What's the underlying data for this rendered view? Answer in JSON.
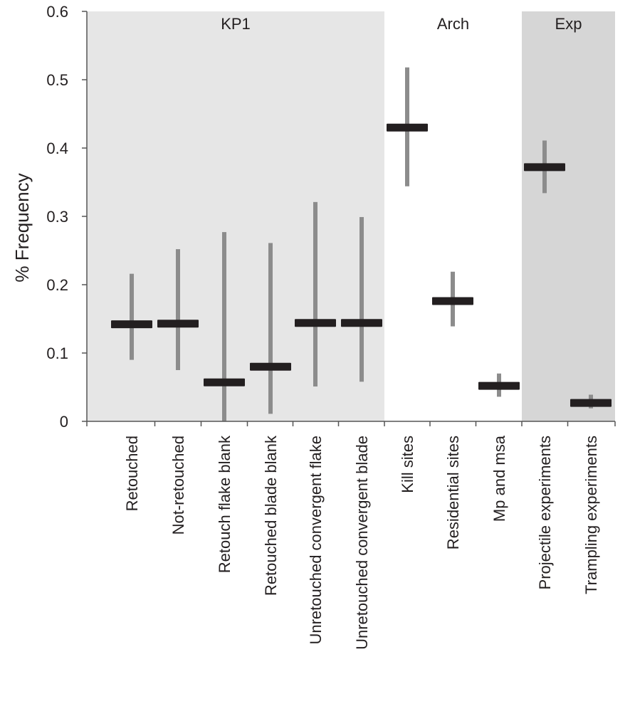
{
  "chart_data": {
    "type": "error-bar",
    "title": "",
    "xlabel": "",
    "ylabel": "% Frequency",
    "ylim": [
      0,
      0.6
    ],
    "yticks": [
      0,
      0.1,
      0.2,
      0.3,
      0.4,
      0.5,
      0.6
    ],
    "ytick_labels": [
      "0",
      "0.1",
      "0.2",
      "0.3",
      "0.4",
      "0.5",
      "0.6"
    ],
    "grid": false,
    "categories": [
      "Retouched",
      "Not-retouched",
      "Retouch flake blank",
      "Retouched blade blank",
      "Unretouched convergent flake",
      "Unretouched convergent blade",
      "Kill sites",
      "Residential sites",
      "Mp and msa",
      "Projectile experiments",
      "Trampling experiments"
    ],
    "values": [
      0.142,
      0.143,
      0.057,
      0.08,
      0.144,
      0.144,
      0.43,
      0.176,
      0.052,
      0.372,
      0.027
    ],
    "lower": [
      0.09,
      0.075,
      0.0,
      0.011,
      0.051,
      0.058,
      0.344,
      0.139,
      0.036,
      0.334,
      0.019
    ],
    "upper": [
      0.216,
      0.252,
      0.277,
      0.261,
      0.321,
      0.299,
      0.518,
      0.219,
      0.07,
      0.411,
      0.039
    ],
    "groups": [
      {
        "label": "KP1",
        "start": 0,
        "end": 5,
        "shade": "#e6e6e6"
      },
      {
        "label": "Arch",
        "start": 6,
        "end": 8,
        "shade": "#ffffff"
      },
      {
        "label": "Exp",
        "start": 9,
        "end": 10,
        "shade": "#d6d6d6"
      }
    ],
    "colors": {
      "mean": "#231f20",
      "whisker": "#8c8c8c",
      "axis": "#555555"
    }
  }
}
